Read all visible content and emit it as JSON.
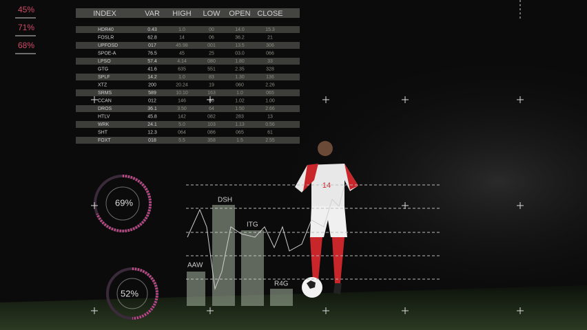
{
  "stats": [
    "45%",
    "71%",
    "68%"
  ],
  "table": {
    "header": [
      "INDEX",
      "VAR",
      "HIGH",
      "LOW",
      "OPEN",
      "CLOSE"
    ],
    "rows": [
      [
        "HDR40",
        "0.43",
        "1.0",
        "00",
        "14.0",
        "15.3"
      ],
      [
        "FOSLR",
        "62.8",
        "14",
        "06",
        "36.2",
        "21"
      ],
      [
        "UPFOSD",
        "017",
        "45.98",
        "001",
        "13.5",
        "306"
      ],
      [
        "SPOE-A",
        "76.5",
        "45",
        "25",
        "03.0",
        "066"
      ],
      [
        "LPSO",
        "57.4",
        "4.14",
        "080",
        "1.80",
        "33"
      ],
      [
        "GTG",
        "41.6",
        "635",
        "551",
        "2.35",
        "328"
      ],
      [
        "SPLF",
        "14.2",
        "1.0",
        "83",
        "1.30",
        "136"
      ],
      [
        "XTZ",
        "200",
        "20.24",
        "19",
        "060",
        "2.26"
      ],
      [
        "SRMS",
        "589",
        "10.10",
        "163",
        "1.0",
        "065"
      ],
      [
        "CCAN",
        "012",
        "146",
        "80",
        "1.02",
        "1.00"
      ],
      [
        "DROS",
        "36.1",
        "3.50",
        "64",
        "1.50",
        "2.66"
      ],
      [
        "HTLV",
        "45.8",
        "142",
        "082",
        "283",
        "13"
      ],
      [
        "WRK",
        "24.1",
        "5.0",
        "103",
        "1.13",
        "0.56"
      ],
      [
        "SHT",
        "12.3",
        "064",
        "086",
        "065",
        "61"
      ],
      [
        "FOXT",
        "018",
        "5.5",
        "358",
        "1.5",
        "2.55"
      ]
    ]
  },
  "gauges": [
    "69%",
    "52%"
  ],
  "bars": [
    "AAW",
    "DSH",
    "ITG",
    "R4G"
  ],
  "player_number": "14"
}
